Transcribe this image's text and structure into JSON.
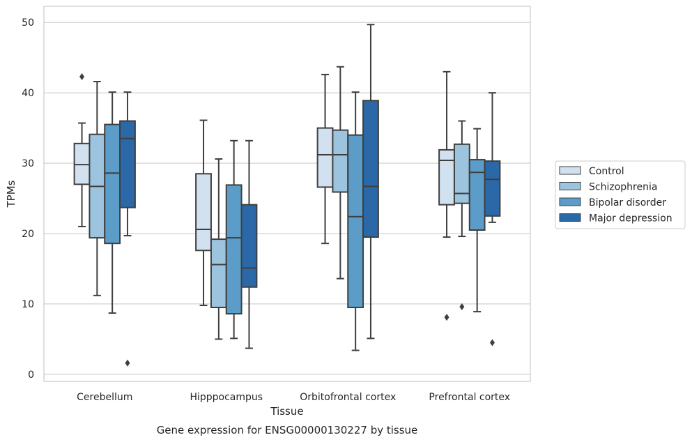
{
  "chart_data": {
    "type": "box",
    "xlabel": "Tissue",
    "ylabel": "TPMs",
    "caption": "Gene expression for ENSG00000130227 by tissue",
    "ylim": [
      -1,
      52.3
    ],
    "yticks": [
      0,
      10,
      20,
      30,
      40,
      50
    ],
    "grid": "horizontal",
    "legend_placement": "right",
    "categories": [
      "Cerebellum",
      "Hipppocampus",
      "Orbitofrontal cortex",
      "Prefrontal cortex"
    ],
    "series": [
      {
        "name": "Control",
        "color": "#d2e1f0",
        "boxes": [
          {
            "whisker_low": 21.0,
            "q1": 27.0,
            "median": 29.8,
            "q3": 32.8,
            "whisker_high": 35.7,
            "outliers": [
              42.3
            ]
          },
          {
            "whisker_low": 9.8,
            "q1": 17.6,
            "median": 20.6,
            "q3": 28.5,
            "whisker_high": 36.1,
            "outliers": []
          },
          {
            "whisker_low": 18.6,
            "q1": 26.6,
            "median": 31.2,
            "q3": 35.0,
            "whisker_high": 42.6,
            "outliers": []
          },
          {
            "whisker_low": 19.5,
            "q1": 24.1,
            "median": 30.4,
            "q3": 31.9,
            "whisker_high": 43.0,
            "outliers": [
              8.1
            ]
          }
        ]
      },
      {
        "name": "Schizophrenia",
        "color": "#9cc4de",
        "boxes": [
          {
            "whisker_low": 11.2,
            "q1": 19.4,
            "median": 26.7,
            "q3": 34.1,
            "whisker_high": 41.6,
            "outliers": []
          },
          {
            "whisker_low": 5.0,
            "q1": 9.5,
            "median": 15.6,
            "q3": 19.2,
            "whisker_high": 30.6,
            "outliers": []
          },
          {
            "whisker_low": 13.6,
            "q1": 25.9,
            "median": 31.2,
            "q3": 34.7,
            "whisker_high": 43.7,
            "outliers": []
          },
          {
            "whisker_low": 19.6,
            "q1": 24.3,
            "median": 25.7,
            "q3": 32.7,
            "whisker_high": 36.0,
            "outliers": [
              9.6
            ]
          }
        ]
      },
      {
        "name": "Bipolar disorder",
        "color": "#5b9dc8",
        "boxes": [
          {
            "whisker_low": 8.7,
            "q1": 18.6,
            "median": 28.6,
            "q3": 35.5,
            "whisker_high": 40.1,
            "outliers": []
          },
          {
            "whisker_low": 5.1,
            "q1": 8.6,
            "median": 19.4,
            "q3": 26.9,
            "whisker_high": 33.2,
            "outliers": []
          },
          {
            "whisker_low": 3.4,
            "q1": 9.5,
            "median": 22.4,
            "q3": 34.0,
            "whisker_high": 40.1,
            "outliers": []
          },
          {
            "whisker_low": 8.9,
            "q1": 20.5,
            "median": 28.7,
            "q3": 30.5,
            "whisker_high": 34.9,
            "outliers": []
          }
        ]
      },
      {
        "name": "Major depression",
        "color": "#2a68a8",
        "boxes": [
          {
            "whisker_low": 19.7,
            "q1": 23.7,
            "median": 33.5,
            "q3": 36.0,
            "whisker_high": 40.1,
            "outliers": [
              1.6
            ]
          },
          {
            "whisker_low": 3.7,
            "q1": 12.4,
            "median": 15.1,
            "q3": 24.1,
            "whisker_high": 33.2,
            "outliers": []
          },
          {
            "whisker_low": 5.1,
            "q1": 19.5,
            "median": 26.7,
            "q3": 38.9,
            "whisker_high": 49.7,
            "outliers": []
          },
          {
            "whisker_low": 21.6,
            "q1": 22.5,
            "median": 27.7,
            "q3": 30.3,
            "whisker_high": 40.0,
            "outliers": [
              4.5
            ]
          }
        ]
      }
    ]
  }
}
